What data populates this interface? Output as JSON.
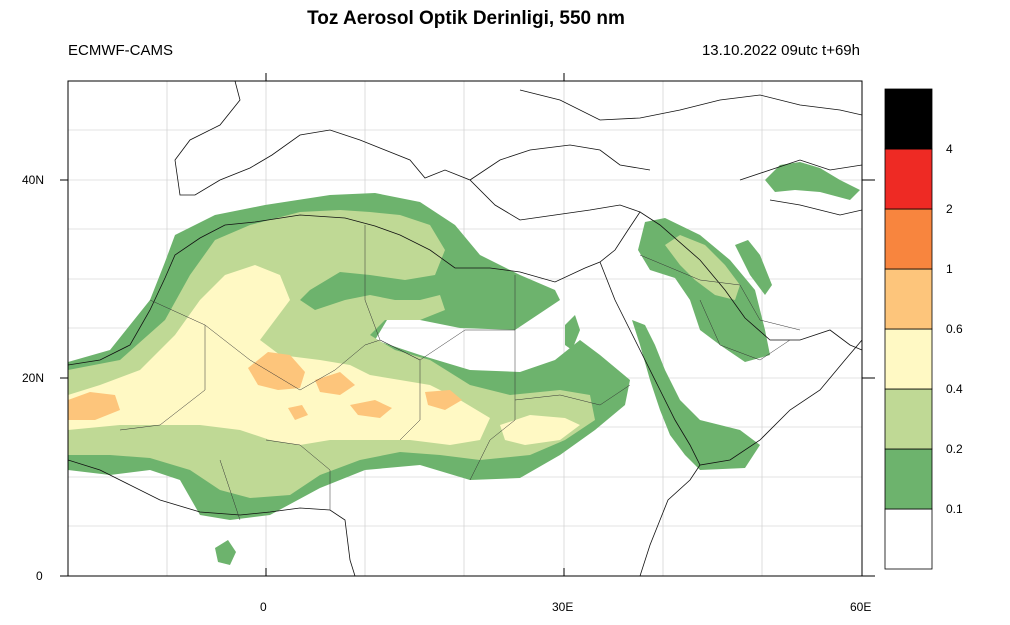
{
  "title": "Toz Aerosol Optik Derinligi, 550 nm",
  "source": "ECMWF-CAMS",
  "valid": "13.10.2022 09utc t+69h",
  "axes": {
    "lon_ticks": [
      {
        "value": 0,
        "label": "0"
      },
      {
        "value": 30,
        "label": "30E"
      },
      {
        "value": 60,
        "label": "60E"
      }
    ],
    "lat_ticks": [
      {
        "value": 0,
        "label": "0"
      },
      {
        "value": 20,
        "label": "20N"
      },
      {
        "value": 40,
        "label": "40N"
      }
    ],
    "lon_range": [
      -20,
      60
    ],
    "lat_range": [
      0,
      50
    ]
  },
  "colorbar": {
    "colors": [
      "#ffffff",
      "#6db36d",
      "#bfd995",
      "#fff9c4",
      "#fdc57b",
      "#f8853e",
      "#ee2a24",
      "#000000"
    ],
    "labels": [
      "0.1",
      "0.2",
      "0.4",
      "0.6",
      "1",
      "2",
      "4"
    ]
  }
}
